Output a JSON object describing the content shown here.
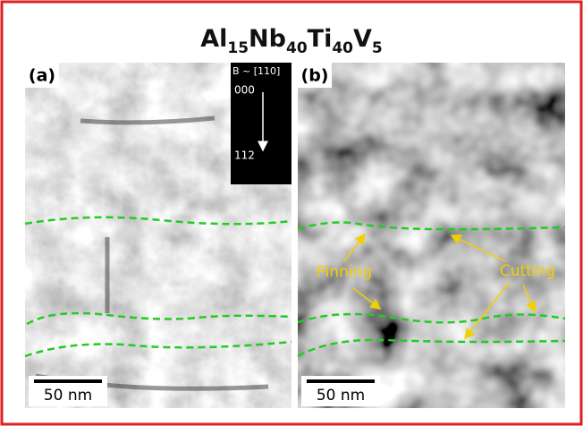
{
  "title": {
    "elements": [
      "Al",
      "Nb",
      "Ti",
      "V"
    ],
    "subscripts": [
      "15",
      "40",
      "40",
      "5"
    ]
  },
  "panels": [
    {
      "label": "(a)",
      "scale_bar": "50 nm",
      "inset": {
        "zone_axis": "B ~ [110]",
        "spots": [
          "000",
          "112"
        ]
      }
    },
    {
      "label": "(b)",
      "scale_bar": "50 nm",
      "annotations": [
        "Pinning",
        "Cutting"
      ]
    }
  ]
}
